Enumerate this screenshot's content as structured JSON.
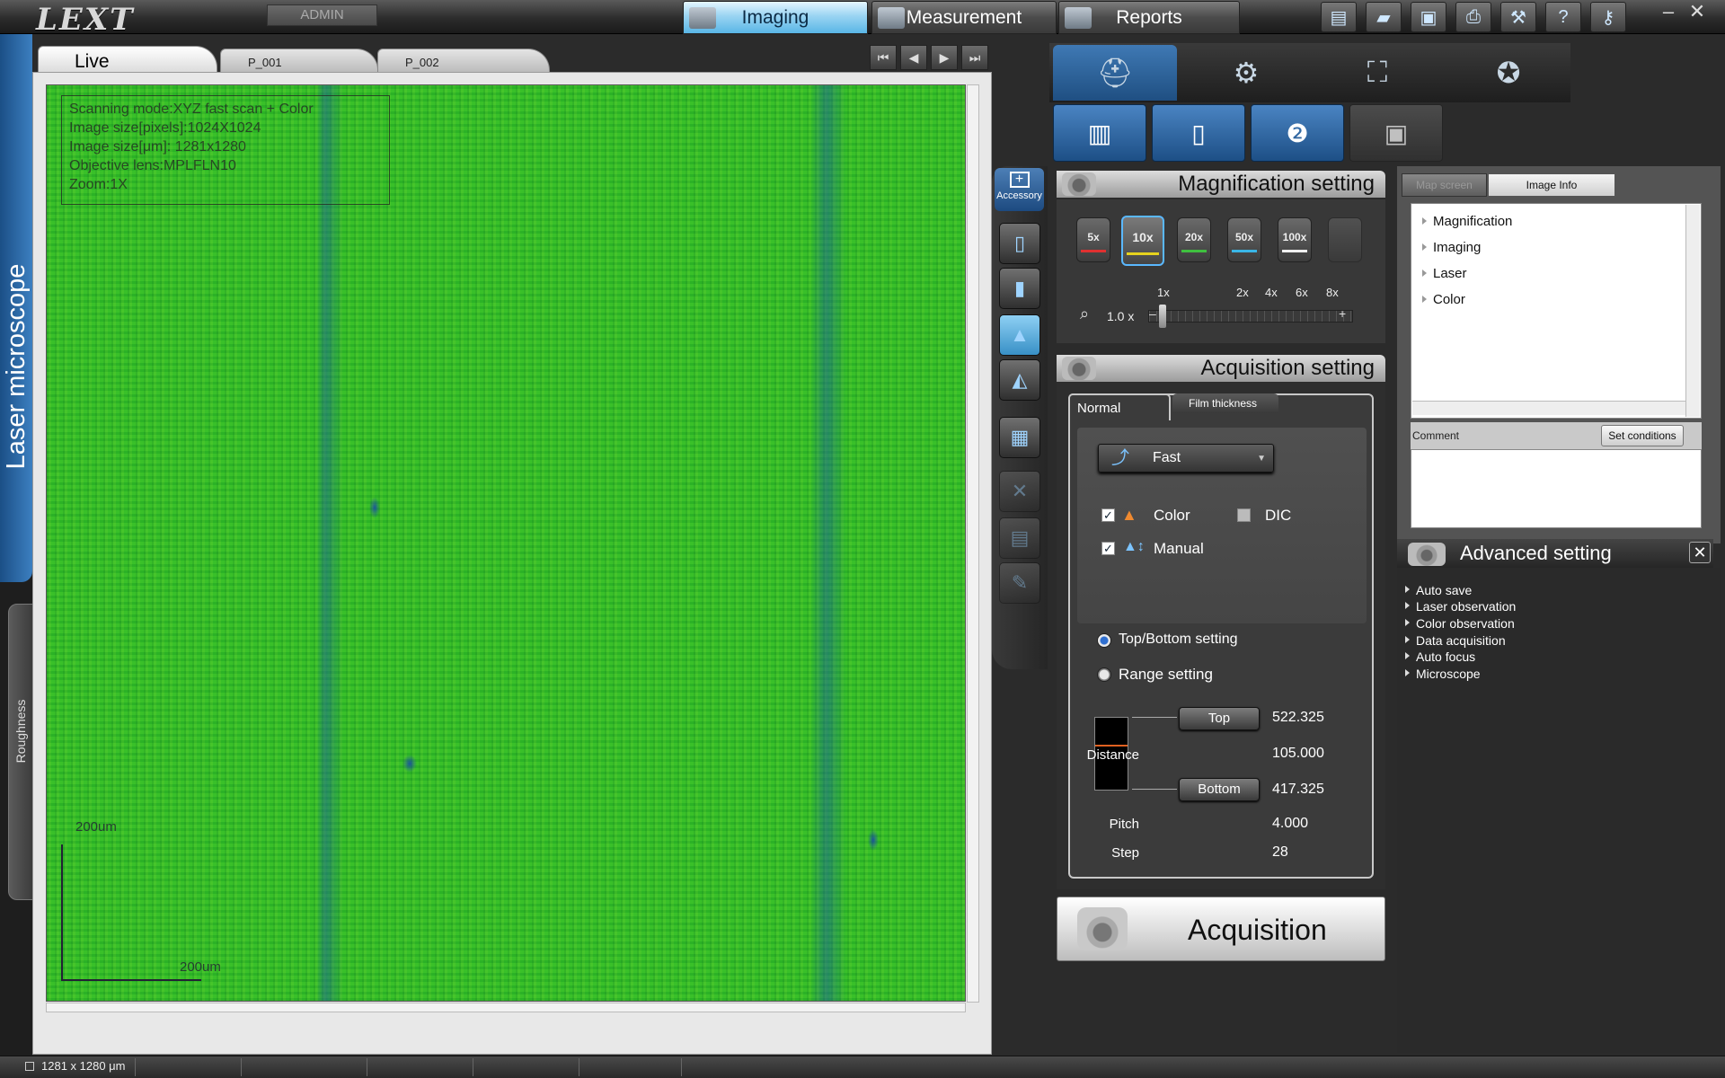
{
  "app": {
    "logo": "LEXT",
    "user": "ADMIN"
  },
  "mode_tabs": [
    {
      "label": "Imaging",
      "active": true
    },
    {
      "label": "Measurement",
      "active": false
    },
    {
      "label": "Reports",
      "active": false
    }
  ],
  "window_controls": {
    "minimize": "–",
    "close": "✕"
  },
  "left_tabs": {
    "main": "Laser microscope",
    "secondary": "Roughness"
  },
  "image_tabs": [
    {
      "label": "Live",
      "active": true
    },
    {
      "label": "P_001",
      "active": false
    },
    {
      "label": "P_002",
      "active": false
    }
  ],
  "nav_buttons": [
    "⏮",
    "◀",
    "▶",
    "⏭"
  ],
  "image_info": {
    "lines": [
      "Scanning mode:XYZ fast scan + Color",
      "Image size[pixels]:1024X1024",
      "Image size[μm]: 1281x1280",
      "Objective lens:MPLFLN10",
      "Zoom:1X"
    ],
    "scale_y": "200um",
    "scale_x": "200um"
  },
  "accessory_label": "Accessory",
  "magnification": {
    "title": "Magnification setting",
    "lenses": [
      {
        "label": "5x",
        "selected": false,
        "band": "#e03030"
      },
      {
        "label": "10x",
        "selected": true,
        "band": "#e6d21e"
      },
      {
        "label": "20x",
        "selected": false,
        "band": "#3fc03f"
      },
      {
        "label": "50x",
        "selected": false,
        "band": "#3ab6e6"
      },
      {
        "label": "100x",
        "selected": false,
        "band": "#f0f0f0"
      }
    ],
    "zoom_ticks": [
      "1x",
      "2x",
      "4x",
      "6x",
      "8x"
    ],
    "zoom_value": "1.0",
    "zoom_unit": "x",
    "zoom_plus": "+",
    "zoom_minus": "–"
  },
  "acquisition": {
    "title": "Acquisition setting",
    "tabs": [
      {
        "label": "Normal",
        "active": true
      },
      {
        "label": "Film thickness",
        "active": false
      }
    ],
    "speed": "Fast",
    "speed_arrow": "▼",
    "color": {
      "label": "Color",
      "checked": true
    },
    "dic": {
      "label": "DIC",
      "checked": false
    },
    "manual": {
      "label": "Manual",
      "checked": true
    },
    "check_mark": "✓",
    "mode_top_bottom": "Top/Bottom setting",
    "mode_range": "Range setting",
    "top_button": "Top",
    "bottom_button": "Bottom",
    "top_value": "522.325",
    "distance_label": "Distance",
    "distance_value": "105.000",
    "bottom_value": "417.325",
    "pitch_label": "Pitch",
    "pitch_value": "4.000",
    "step_label": "Step",
    "step_value": "28",
    "action_button": "Acquisition"
  },
  "info_panel": {
    "tabs": [
      {
        "label": "Map screen",
        "active": false
      },
      {
        "label": "Image Info",
        "active": true
      }
    ],
    "tree": [
      "Magnification",
      "Imaging",
      "Laser",
      "Color"
    ],
    "comment_label": "Comment",
    "set_conditions": "Set conditions"
  },
  "advanced": {
    "title": "Advanced setting",
    "close": "✕",
    "items": [
      "Auto save",
      "Laser observation",
      "Color observation",
      "Data acquisition",
      "Auto focus",
      "Microscope"
    ]
  },
  "status": {
    "size": "1281 x 1280 μm"
  },
  "colors": {
    "accent": "#5ab8ff",
    "image_green": "#2fbc28",
    "panel_blue": "#2a5f98"
  }
}
